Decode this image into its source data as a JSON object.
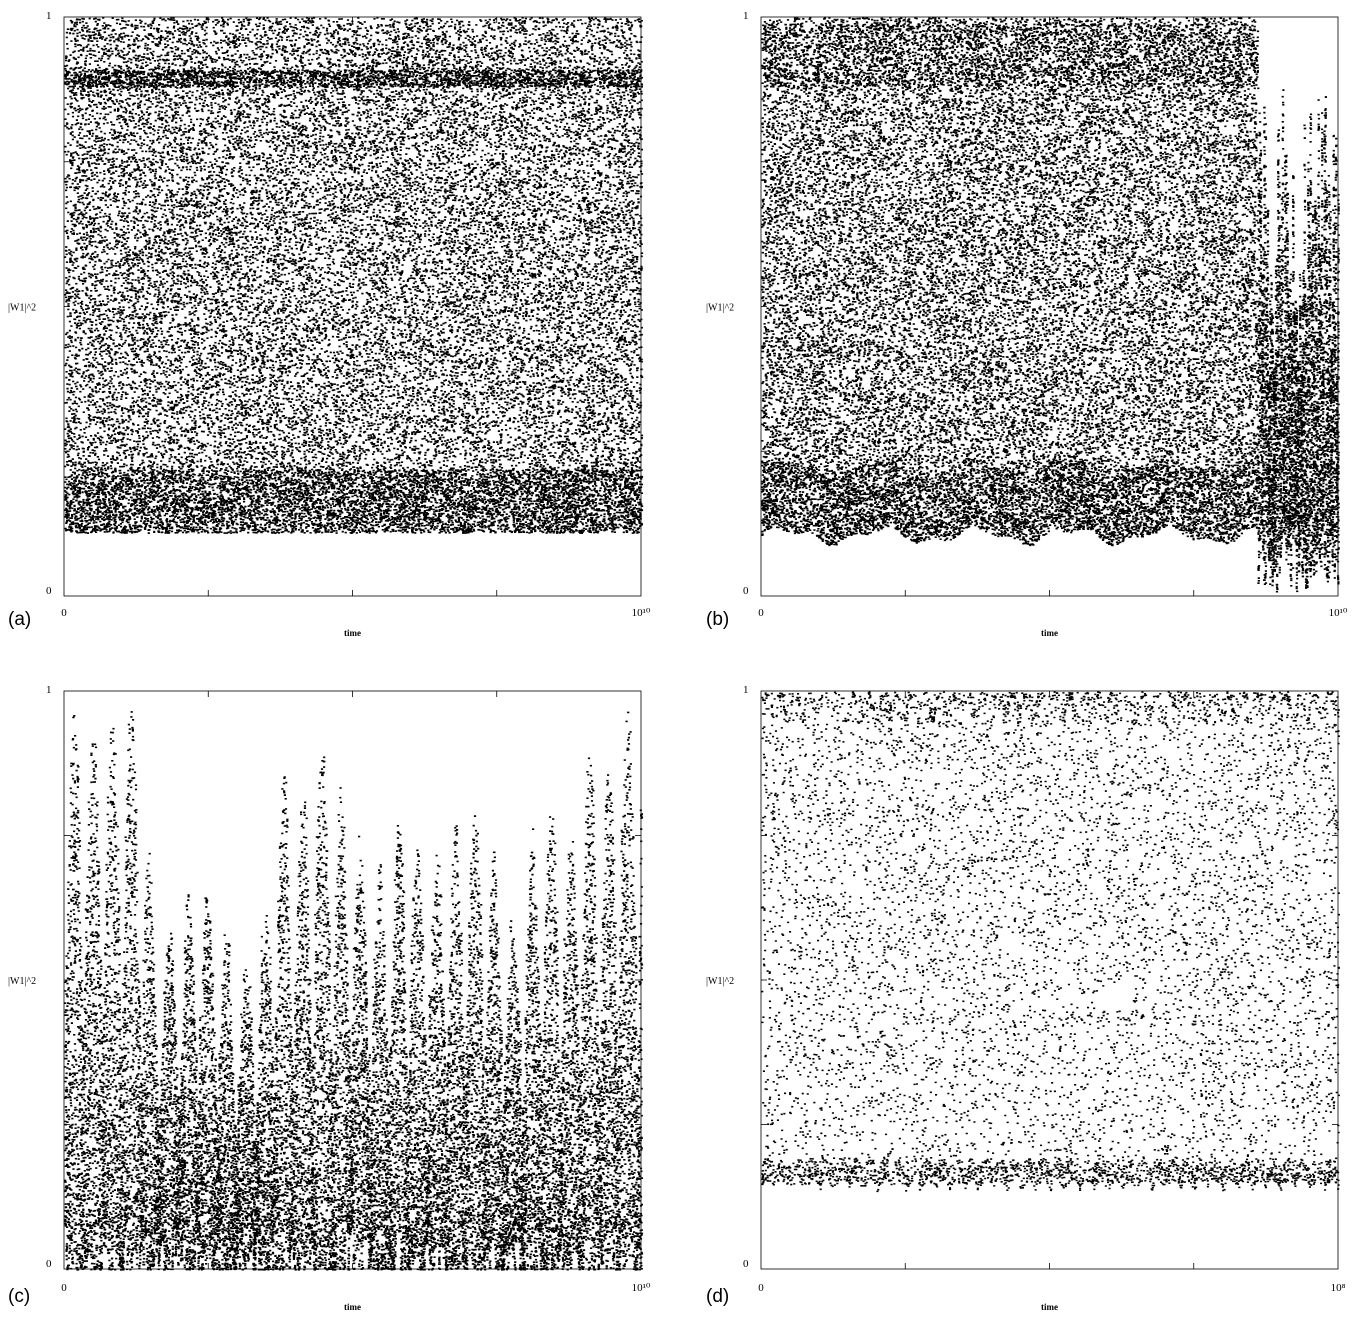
{
  "chart_data": [
    {
      "panel_label": "(a)",
      "type": "scatter",
      "ylabel": "|W1|^2",
      "xlabel": "time",
      "xlim": [
        0,
        10000000000
      ],
      "ylim": [
        0,
        1
      ],
      "x_tick_labels": [
        "0",
        "10¹⁰"
      ],
      "y_tick_labels": [
        "0",
        "1"
      ],
      "series": [
        {
          "y_range": [
            0.11,
            1.0
          ],
          "dense_band_bottom": [
            0.11,
            0.22
          ],
          "dense_band_top": [
            0.88,
            0.91
          ],
          "density": 0.85
        }
      ]
    },
    {
      "panel_label": "(b)",
      "type": "scatter",
      "ylabel": "|W1|^2",
      "xlabel": "time",
      "xlim": [
        0,
        10000000000
      ],
      "ylim": [
        0,
        1
      ],
      "x_tick_labels": [
        "0",
        "10¹⁰"
      ],
      "y_tick_labels": [
        "0",
        "1"
      ],
      "series": [
        {
          "x_range": [
            0,
            8600000000
          ],
          "y_range": [
            0.1,
            1.0
          ],
          "density": 0.82
        },
        {
          "x_range": [
            8600000000,
            10000000000
          ],
          "y_range": [
            0.0,
            0.92
          ],
          "density": 0.35
        }
      ]
    },
    {
      "panel_label": "(c)",
      "type": "scatter",
      "ylabel": "|W1|^2",
      "xlabel": "time",
      "xlim": [
        0,
        10000000000
      ],
      "ylim": [
        0,
        1
      ],
      "x_tick_labels": [
        "0",
        "10¹⁰"
      ],
      "y_tick_labels": [
        "0",
        "1"
      ],
      "series": [
        {
          "y_range": [
            0.0,
            1.0
          ],
          "burst_peaks": [
            0.98,
            0.92,
            0.9,
            0.96,
            0.95,
            0.57,
            0.55,
            0.65,
            0.6,
            0.55,
            0.48,
            0.56,
            0.82,
            0.78,
            0.9,
            0.82,
            0.75,
            0.65,
            0.68,
            0.8,
            0.65,
            0.72,
            0.75,
            0.78,
            0.65,
            0.55,
            0.75,
            0.8,
            0.7,
            0.88,
            0.85,
            0.96,
            0.95
          ]
        }
      ]
    },
    {
      "panel_label": "(d)",
      "type": "scatter",
      "ylabel": "|W1|^2",
      "xlabel": "time",
      "xlim": [
        0,
        100000000
      ],
      "ylim": [
        0,
        1
      ],
      "x_tick_labels": [
        "0",
        "10⁸"
      ],
      "y_tick_labels": [
        "0",
        "1"
      ],
      "series": [
        {
          "y_range": [
            0.13,
            1.0
          ],
          "dense_band_bottom": [
            0.13,
            0.17
          ],
          "dense_band_top": [
            0.94,
            1.0
          ],
          "density": 0.22,
          "oscillation_periods": 40
        }
      ]
    }
  ]
}
